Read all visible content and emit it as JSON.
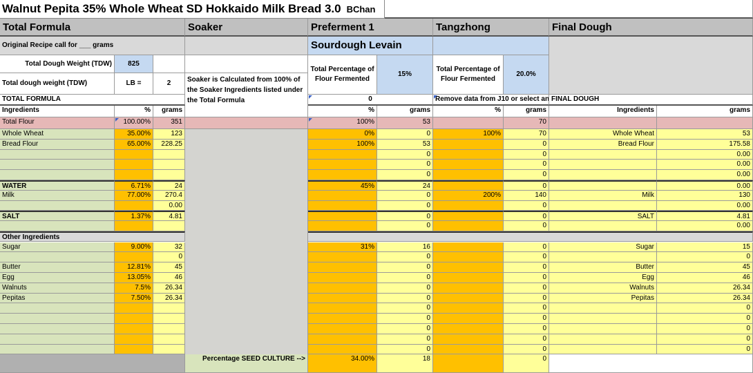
{
  "title": "Walnut Pepita 35% Whole Wheat SD Hokkaido Milk Bread 3.0",
  "author": "BChan",
  "sections": {
    "total_formula": "Total Formula",
    "soaker": "Soaker",
    "preferment": "Preferment 1",
    "tangzhong": "Tangzhong",
    "final_dough": "Final Dough"
  },
  "top": {
    "original_recipe": "Original Recipe call for ___ grams",
    "tdw_label": "Total Dough Weight (TDW)",
    "tdw_value": "825",
    "tdw_lb_label": "Total dough weight (TDW)",
    "lb_unit": "LB  =",
    "lb_value": "2",
    "total_formula_label": "TOTAL FORMULA",
    "soaker_note": "Soaker is Calculated from 100% of the Soaker Ingredients listed under the Total Formula",
    "levain_label": "Sourdough Levain",
    "pf_label": "Total Percentage of Flour Fermented",
    "pf_value": "15%",
    "pf_zero": "0",
    "tz_label": "Total Percentage of Flour Fermented",
    "tz_value": "20.0%",
    "tz_note": "Remove data from J10 or select an",
    "final_label": "FINAL DOUGH"
  },
  "headers": {
    "ingredients": "Ingredients",
    "pct": "%",
    "grams": "grams"
  },
  "total_flour": {
    "name": "Total Flour",
    "pct": "100.00%",
    "grams": "351",
    "pf_pct": "100%",
    "pf_g": "53",
    "tz_g": "70"
  },
  "rows": [
    {
      "name": "Whole Wheat",
      "pct": "35.00%",
      "g": "123",
      "pf_pct": "0%",
      "pf_g": "0",
      "tz_pct": "100%",
      "tz_g": "70",
      "fd_name": "Whole Wheat",
      "fd_g": "53"
    },
    {
      "name": "Bread Flour",
      "pct": "65.00%",
      "g": "228.25",
      "pf_pct": "100%",
      "pf_g": "53",
      "tz_pct": "",
      "tz_g": "0",
      "fd_name": "Bread Flour",
      "fd_g": "175.58"
    },
    {
      "name": "",
      "pct": "",
      "g": "",
      "pf_pct": "",
      "pf_g": "0",
      "tz_pct": "",
      "tz_g": "0",
      "fd_name": "",
      "fd_g": "0.00"
    },
    {
      "name": "",
      "pct": "",
      "g": "",
      "pf_pct": "",
      "pf_g": "0",
      "tz_pct": "",
      "tz_g": "0",
      "fd_name": "",
      "fd_g": "0.00"
    },
    {
      "name": "",
      "pct": "",
      "g": "",
      "pf_pct": "",
      "pf_g": "0",
      "tz_pct": "",
      "tz_g": "0",
      "fd_name": "",
      "fd_g": "0.00"
    },
    {
      "name": "WATER",
      "pct": "6.71%",
      "g": "24",
      "pf_pct": "45%",
      "pf_g": "24",
      "tz_pct": "",
      "tz_g": "0",
      "fd_name": "",
      "fd_g": "0.00"
    },
    {
      "name": "Milk",
      "pct": "77.00%",
      "g": "270.4",
      "pf_pct": "",
      "pf_g": "0",
      "tz_pct": "200%",
      "tz_g": "140",
      "fd_name": "Milk",
      "fd_g": "130"
    },
    {
      "name": "",
      "pct": "",
      "g": "0.00",
      "pf_pct": "",
      "pf_g": "0",
      "tz_pct": "",
      "tz_g": "0",
      "fd_name": "",
      "fd_g": "0.00"
    },
    {
      "name": "SALT",
      "pct": "1.37%",
      "g": "4.81",
      "pf_pct": "",
      "pf_g": "0",
      "tz_pct": "",
      "tz_g": "0",
      "fd_name": "SALT",
      "fd_g": "4.81"
    },
    {
      "name": "",
      "pct": "",
      "g": "",
      "pf_pct": "",
      "pf_g": "0",
      "tz_pct": "",
      "tz_g": "0",
      "fd_name": "",
      "fd_g": "0.00"
    }
  ],
  "other_label": "Other Ingredients",
  "other_rows": [
    {
      "name": "Sugar",
      "pct": "9.00%",
      "g": "32",
      "pf_pct": "31%",
      "pf_g": "16",
      "tz_pct": "",
      "tz_g": "0",
      "fd_name": "Sugar",
      "fd_g": "15"
    },
    {
      "name": "",
      "pct": "",
      "g": "0",
      "pf_pct": "",
      "pf_g": "0",
      "tz_pct": "",
      "tz_g": "0",
      "fd_name": "",
      "fd_g": "0"
    },
    {
      "name": "Butter",
      "pct": "12.81%",
      "g": "45",
      "pf_pct": "",
      "pf_g": "0",
      "tz_pct": "",
      "tz_g": "0",
      "fd_name": "Butter",
      "fd_g": "45"
    },
    {
      "name": "Egg",
      "pct": "13.05%",
      "g": "46",
      "pf_pct": "",
      "pf_g": "0",
      "tz_pct": "",
      "tz_g": "0",
      "fd_name": "Egg",
      "fd_g": "46"
    },
    {
      "name": "Walnuts",
      "pct": "7.5%",
      "g": "26.34",
      "pf_pct": "",
      "pf_g": "0",
      "tz_pct": "",
      "tz_g": "0",
      "fd_name": "Walnuts",
      "fd_g": "26.34"
    },
    {
      "name": "Pepitas",
      "pct": "7.50%",
      "g": "26.34",
      "pf_pct": "",
      "pf_g": "0",
      "tz_pct": "",
      "tz_g": "0",
      "fd_name": "Pepitas",
      "fd_g": "26.34"
    },
    {
      "name": "",
      "pct": "",
      "g": "",
      "pf_pct": "",
      "pf_g": "0",
      "tz_pct": "",
      "tz_g": "0",
      "fd_name": "",
      "fd_g": "0"
    },
    {
      "name": "",
      "pct": "",
      "g": "",
      "pf_pct": "",
      "pf_g": "0",
      "tz_pct": "",
      "tz_g": "0",
      "fd_name": "",
      "fd_g": "0"
    },
    {
      "name": "",
      "pct": "",
      "g": "",
      "pf_pct": "",
      "pf_g": "0",
      "tz_pct": "",
      "tz_g": "0",
      "fd_name": "",
      "fd_g": "0"
    },
    {
      "name": "",
      "pct": "",
      "g": "",
      "pf_pct": "",
      "pf_g": "0",
      "tz_pct": "",
      "tz_g": "0",
      "fd_name": "",
      "fd_g": "0"
    },
    {
      "name": "",
      "pct": "",
      "g": "",
      "pf_pct": "",
      "pf_g": "0",
      "tz_pct": "",
      "tz_g": "0",
      "fd_name": "",
      "fd_g": "0"
    }
  ],
  "seed": {
    "label": "Percentage SEED CULTURE  -->",
    "pct": "34.00%",
    "g": "18",
    "tz_g": "0"
  },
  "colors": {
    "green": "#d8e4bc",
    "yellow": "#ffff99",
    "orange": "#ffc000",
    "pink": "#e6b8b7",
    "blue": "#c5d9f1",
    "gray": "#d4d4d0",
    "header": "#c0c0c0",
    "section": "#d9d9d9"
  }
}
